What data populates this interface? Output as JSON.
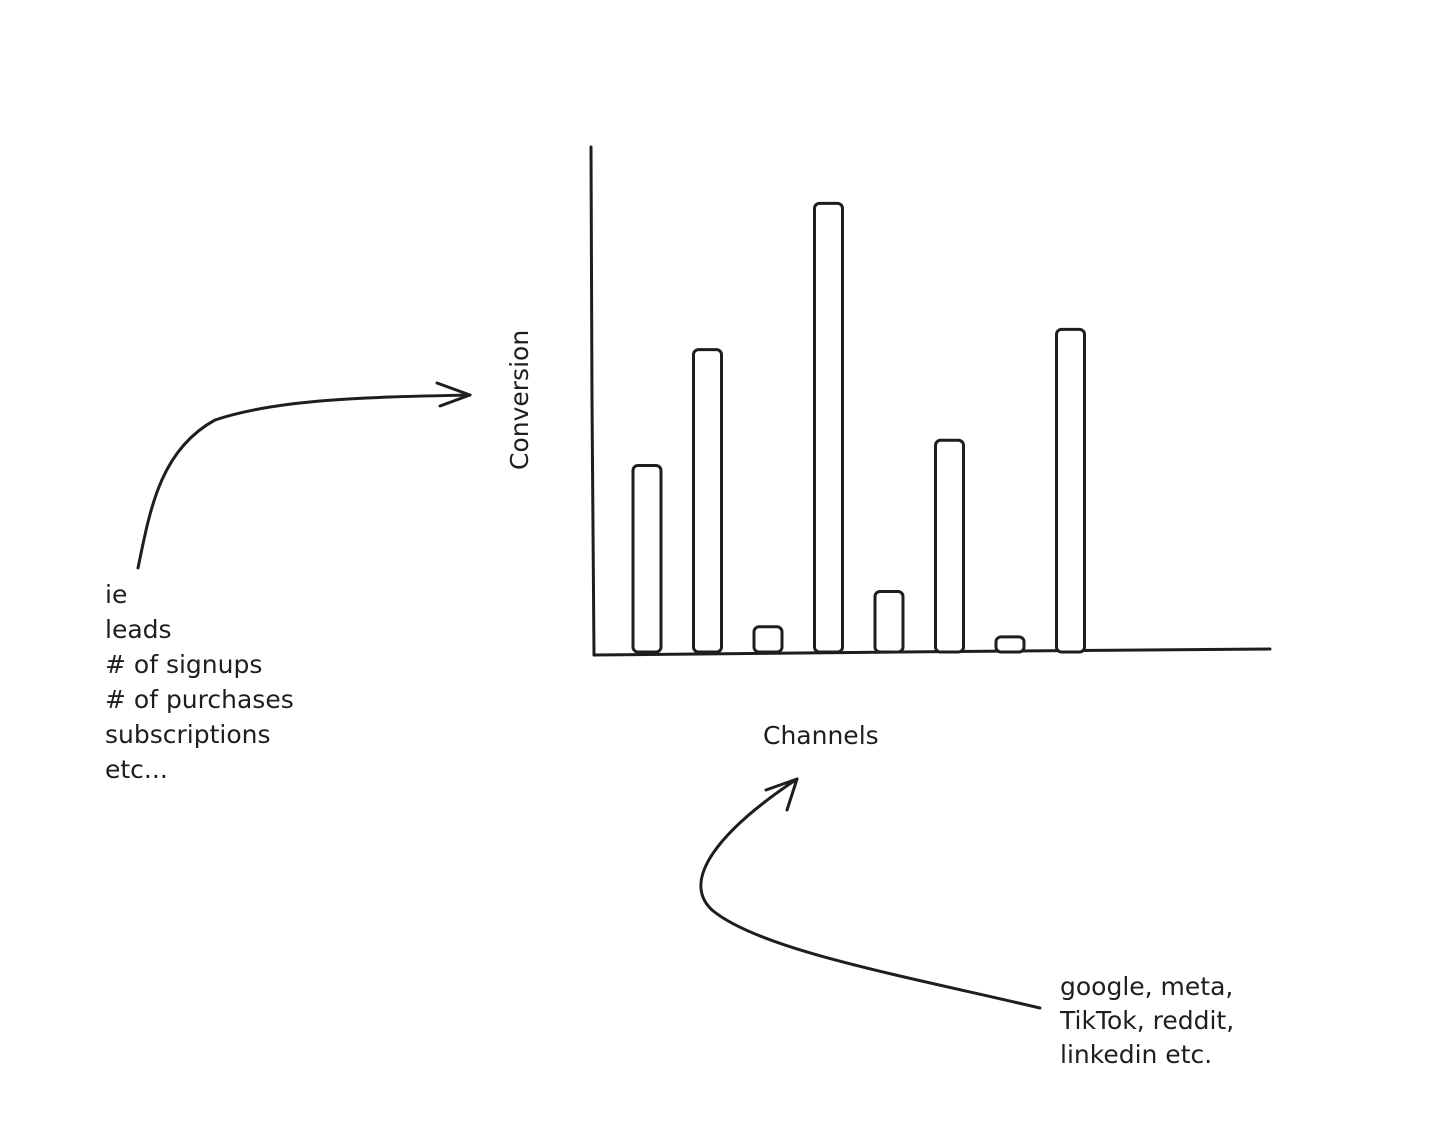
{
  "chart_data": {
    "type": "bar",
    "xlabel": "Channels",
    "ylabel": "Conversion",
    "values": [
      37,
      60,
      5,
      89,
      12,
      42,
      3,
      64
    ],
    "ylim": [
      0,
      100
    ],
    "grid": false,
    "legend": "none",
    "stroke_color": "#1e1e1e",
    "fill_color": "#ffffff"
  },
  "annotations": {
    "conversion_examples": [
      "ie",
      "leads",
      "# of signups",
      "# of purchases",
      "subscriptions",
      "etc..."
    ],
    "channel_examples": [
      "google, meta,",
      "TikTok, reddit,",
      "linkedin etc."
    ]
  }
}
